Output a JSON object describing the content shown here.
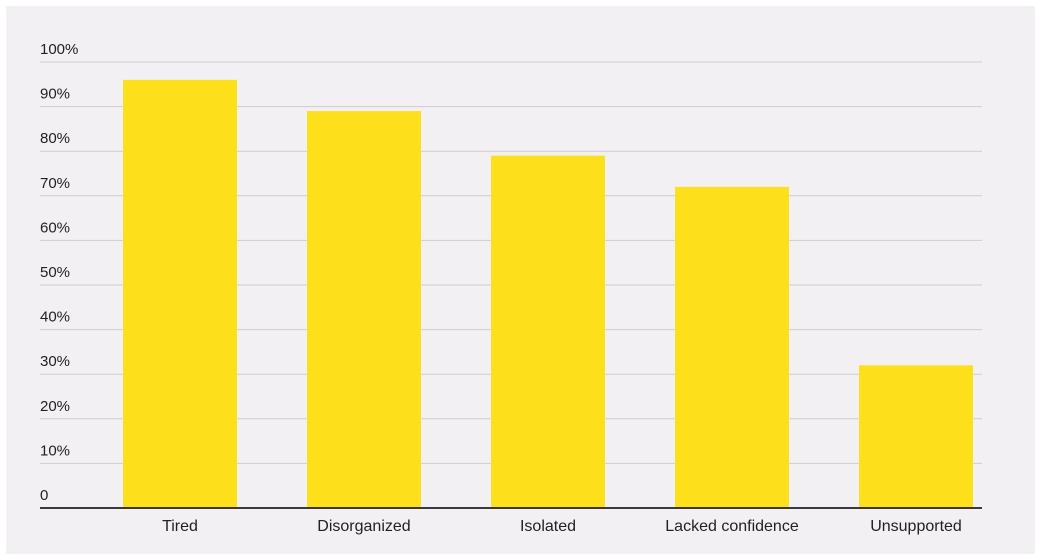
{
  "chart_data": {
    "type": "bar",
    "title": "",
    "xlabel": "",
    "ylabel": "",
    "categories": [
      "Tired",
      "Disorganized",
      "Isolated",
      "Lacked confidence",
      "Unsupported"
    ],
    "values": [
      96,
      89,
      79,
      72,
      32
    ],
    "unit": "%",
    "ylim": [
      0,
      100
    ],
    "yticks": [
      "0",
      "10%",
      "20%",
      "30%",
      "40%",
      "50%",
      "60%",
      "70%",
      "80%",
      "90%",
      "100%"
    ],
    "grid": true,
    "legend": "none",
    "colors": {
      "bar": "#fde01b",
      "background": "#f2f0f2",
      "grid": "#cfcccf",
      "baseline": "#3a3a3a",
      "text": "#222222"
    }
  }
}
